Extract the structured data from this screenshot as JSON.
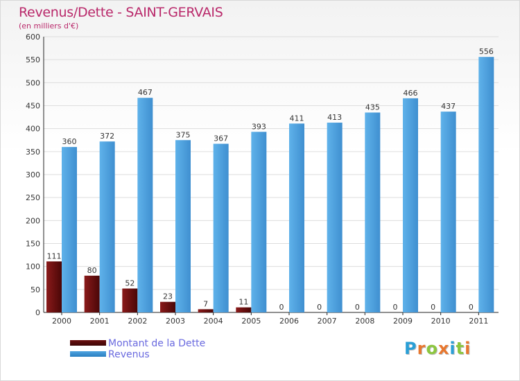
{
  "header": {
    "title": "Revenus/Dette - SAINT-GERVAIS",
    "subtitle": "(en milliers d'€)"
  },
  "legend": {
    "debt_label": "Montant de la Dette",
    "revenue_label": "Revenus"
  },
  "logo": {
    "letters": [
      "P",
      "r",
      "o",
      "x",
      "i",
      "t",
      "i"
    ],
    "colors": [
      "#2a9fd6",
      "#e8772e",
      "#8cc63f",
      "#e8772e",
      "#2a9fd6",
      "#8cc63f",
      "#e8772e"
    ]
  },
  "colors": {
    "debt": "#6b0f0f",
    "revenue": "#4ea3e0",
    "title": "#b9286a",
    "grid": "#dddddd"
  },
  "chart_data": {
    "type": "bar",
    "title": "Revenus/Dette - SAINT-GERVAIS",
    "ylabel": "(en milliers d'€)",
    "xlabel": "",
    "categories": [
      "2000",
      "2001",
      "2002",
      "2003",
      "2004",
      "2005",
      "2006",
      "2007",
      "2008",
      "2009",
      "2010",
      "2011"
    ],
    "series": [
      {
        "name": "Montant de la Dette",
        "values": [
          111,
          80,
          52,
          23,
          7,
          11,
          0,
          0,
          0,
          0,
          0,
          0
        ]
      },
      {
        "name": "Revenus",
        "values": [
          360,
          372,
          467,
          375,
          367,
          393,
          411,
          413,
          435,
          466,
          437,
          556
        ]
      }
    ],
    "ylim": [
      0,
      600
    ],
    "yticks": [
      0,
      50,
      100,
      150,
      200,
      250,
      300,
      350,
      400,
      450,
      500,
      550,
      600
    ],
    "grid": true,
    "legend_position": "bottom-left"
  }
}
